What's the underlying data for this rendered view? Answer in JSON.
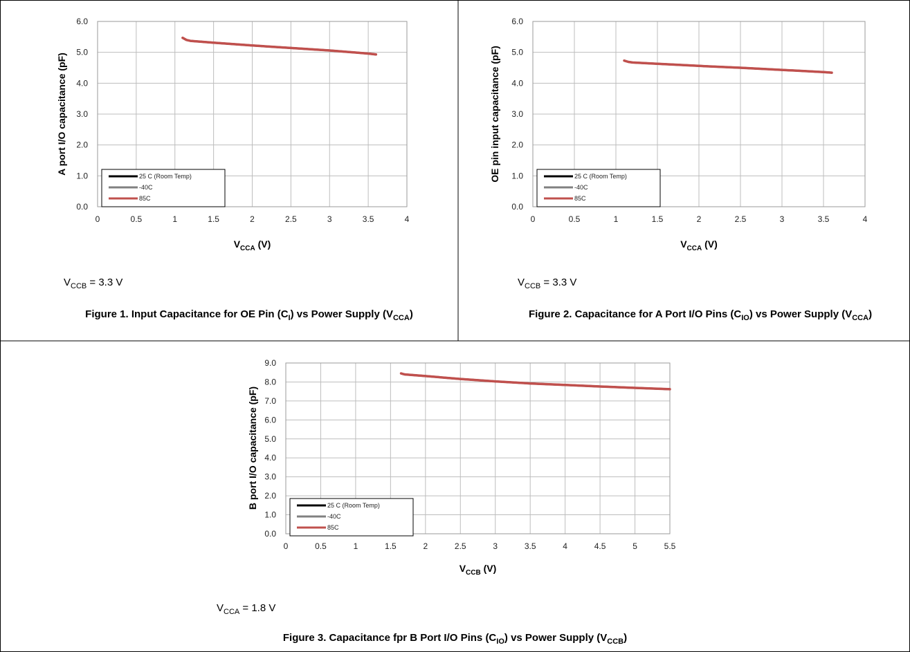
{
  "panels": [
    {
      "id": "fig1",
      "condition": {
        "var": "V",
        "sub": "CCB",
        "value": " = 3.3 V"
      },
      "caption": {
        "a": "Figure 1. Input Capacitance for OE Pin (C",
        "asub": "I",
        "b": ") vs Power Supply (V",
        "bsub": "CCA",
        "c": ")"
      }
    },
    {
      "id": "fig2",
      "condition": {
        "var": "V",
        "sub": "CCB",
        "value": " = 3.3 V"
      },
      "caption": {
        "a": "Figure 2. Capacitance for A Port I/O Pins (C",
        "asub": "IO",
        "b": ") vs Power Supply (V",
        "bsub": "CCA",
        "c": ")"
      }
    },
    {
      "id": "fig3",
      "condition": {
        "var": "V",
        "sub": "CCA",
        "value": " = 1.8 V"
      },
      "caption": {
        "a": "Figure 3. Capacitance fpr B Port I/O Pins (C",
        "asub": "IO",
        "b": ") vs Power Supply (V",
        "bsub": "CCB",
        "c": ")"
      }
    }
  ],
  "chart_data": [
    {
      "type": "line",
      "ylabel": "A port I/O capacitance  (pF)",
      "xlabel": {
        "main": "V",
        "sub": "CCA",
        "unit": " (V)"
      },
      "xlim": [
        0,
        4
      ],
      "ylim": [
        0,
        6
      ],
      "xticks": [
        "0",
        "0.5",
        "1",
        "1.5",
        "2",
        "2.5",
        "3",
        "3.5",
        "4"
      ],
      "yticks": [
        "0.0",
        "1.0",
        "2.0",
        "3.0",
        "4.0",
        "5.0",
        "6.0"
      ],
      "grid": true,
      "legend_position": "bottom-left",
      "series": [
        {
          "name": "25 C (Room Temp)",
          "color": "#000000",
          "x": [
            1.1,
            1.15,
            1.2,
            1.5,
            2.0,
            2.5,
            3.0,
            3.5,
            3.6
          ],
          "y": [
            5.47,
            5.4,
            5.37,
            5.31,
            5.22,
            5.14,
            5.06,
            4.96,
            4.93
          ]
        },
        {
          "name": "-40C",
          "color": "#808080",
          "x": [
            1.1,
            1.15,
            1.2,
            1.5,
            2.0,
            2.5,
            3.0,
            3.5,
            3.6
          ],
          "y": [
            5.47,
            5.4,
            5.37,
            5.31,
            5.22,
            5.14,
            5.06,
            4.96,
            4.93
          ]
        },
        {
          "name": "85C",
          "color": "#c0504d",
          "x": [
            1.1,
            1.15,
            1.2,
            1.5,
            2.0,
            2.5,
            3.0,
            3.5,
            3.6
          ],
          "y": [
            5.47,
            5.4,
            5.37,
            5.31,
            5.22,
            5.14,
            5.06,
            4.96,
            4.93
          ]
        }
      ]
    },
    {
      "type": "line",
      "ylabel": "OE pin input capacitance  (pF)",
      "xlabel": {
        "main": "V",
        "sub": "CCA",
        "unit": " (V)"
      },
      "xlim": [
        0,
        4
      ],
      "ylim": [
        0,
        6
      ],
      "xticks": [
        "0",
        "0.5",
        "1",
        "1.5",
        "2",
        "2.5",
        "3",
        "3.5",
        "4"
      ],
      "yticks": [
        "0.0",
        "1.0",
        "2.0",
        "3.0",
        "4.0",
        "5.0",
        "6.0"
      ],
      "grid": true,
      "legend_position": "bottom-left",
      "series": [
        {
          "name": "25 C (Room Temp)",
          "color": "#000000",
          "x": [
            1.1,
            1.15,
            1.2,
            1.5,
            2.0,
            2.5,
            3.0,
            3.5,
            3.6
          ],
          "y": [
            4.73,
            4.69,
            4.67,
            4.63,
            4.56,
            4.5,
            4.43,
            4.36,
            4.34
          ]
        },
        {
          "name": "-40C",
          "color": "#808080",
          "x": [
            1.1,
            1.15,
            1.2,
            1.5,
            2.0,
            2.5,
            3.0,
            3.5,
            3.6
          ],
          "y": [
            4.73,
            4.69,
            4.67,
            4.63,
            4.56,
            4.5,
            4.43,
            4.36,
            4.34
          ]
        },
        {
          "name": "85C",
          "color": "#c0504d",
          "x": [
            1.1,
            1.15,
            1.2,
            1.5,
            2.0,
            2.5,
            3.0,
            3.5,
            3.6
          ],
          "y": [
            4.73,
            4.69,
            4.67,
            4.63,
            4.56,
            4.5,
            4.43,
            4.36,
            4.34
          ]
        }
      ]
    },
    {
      "type": "line",
      "ylabel": "B port I/O capacitance (pF)",
      "xlabel": {
        "main": "V",
        "sub": "CCB",
        "unit": " (V)"
      },
      "xlim": [
        0,
        5.5
      ],
      "ylim": [
        0,
        9
      ],
      "xticks": [
        "0",
        "0.5",
        "1",
        "1.5",
        "2",
        "2.5",
        "3",
        "3.5",
        "4",
        "4.5",
        "5",
        "5.5"
      ],
      "yticks": [
        "0.0",
        "1.0",
        "2.0",
        "3.0",
        "4.0",
        "5.0",
        "6.0",
        "7.0",
        "8.0",
        "9.0"
      ],
      "grid": true,
      "legend_position": "bottom-left",
      "series": [
        {
          "name": "25 C (Room Temp)",
          "color": "#000000",
          "x": [
            1.65,
            1.7,
            2.0,
            2.5,
            3.0,
            3.5,
            4.0,
            4.5,
            5.0,
            5.5
          ],
          "y": [
            8.45,
            8.4,
            8.31,
            8.16,
            8.03,
            7.92,
            7.84,
            7.76,
            7.69,
            7.62
          ]
        },
        {
          "name": "-40C",
          "color": "#808080",
          "x": [
            1.65,
            1.7,
            2.0,
            2.5,
            3.0,
            3.5,
            4.0,
            4.5,
            5.0,
            5.5
          ],
          "y": [
            8.45,
            8.4,
            8.31,
            8.16,
            8.03,
            7.92,
            7.84,
            7.76,
            7.69,
            7.62
          ]
        },
        {
          "name": "85C",
          "color": "#c0504d",
          "x": [
            1.65,
            1.7,
            2.0,
            2.5,
            3.0,
            3.5,
            4.0,
            4.5,
            5.0,
            5.5
          ],
          "y": [
            8.45,
            8.4,
            8.31,
            8.16,
            8.03,
            7.92,
            7.84,
            7.76,
            7.69,
            7.62
          ]
        }
      ]
    }
  ]
}
